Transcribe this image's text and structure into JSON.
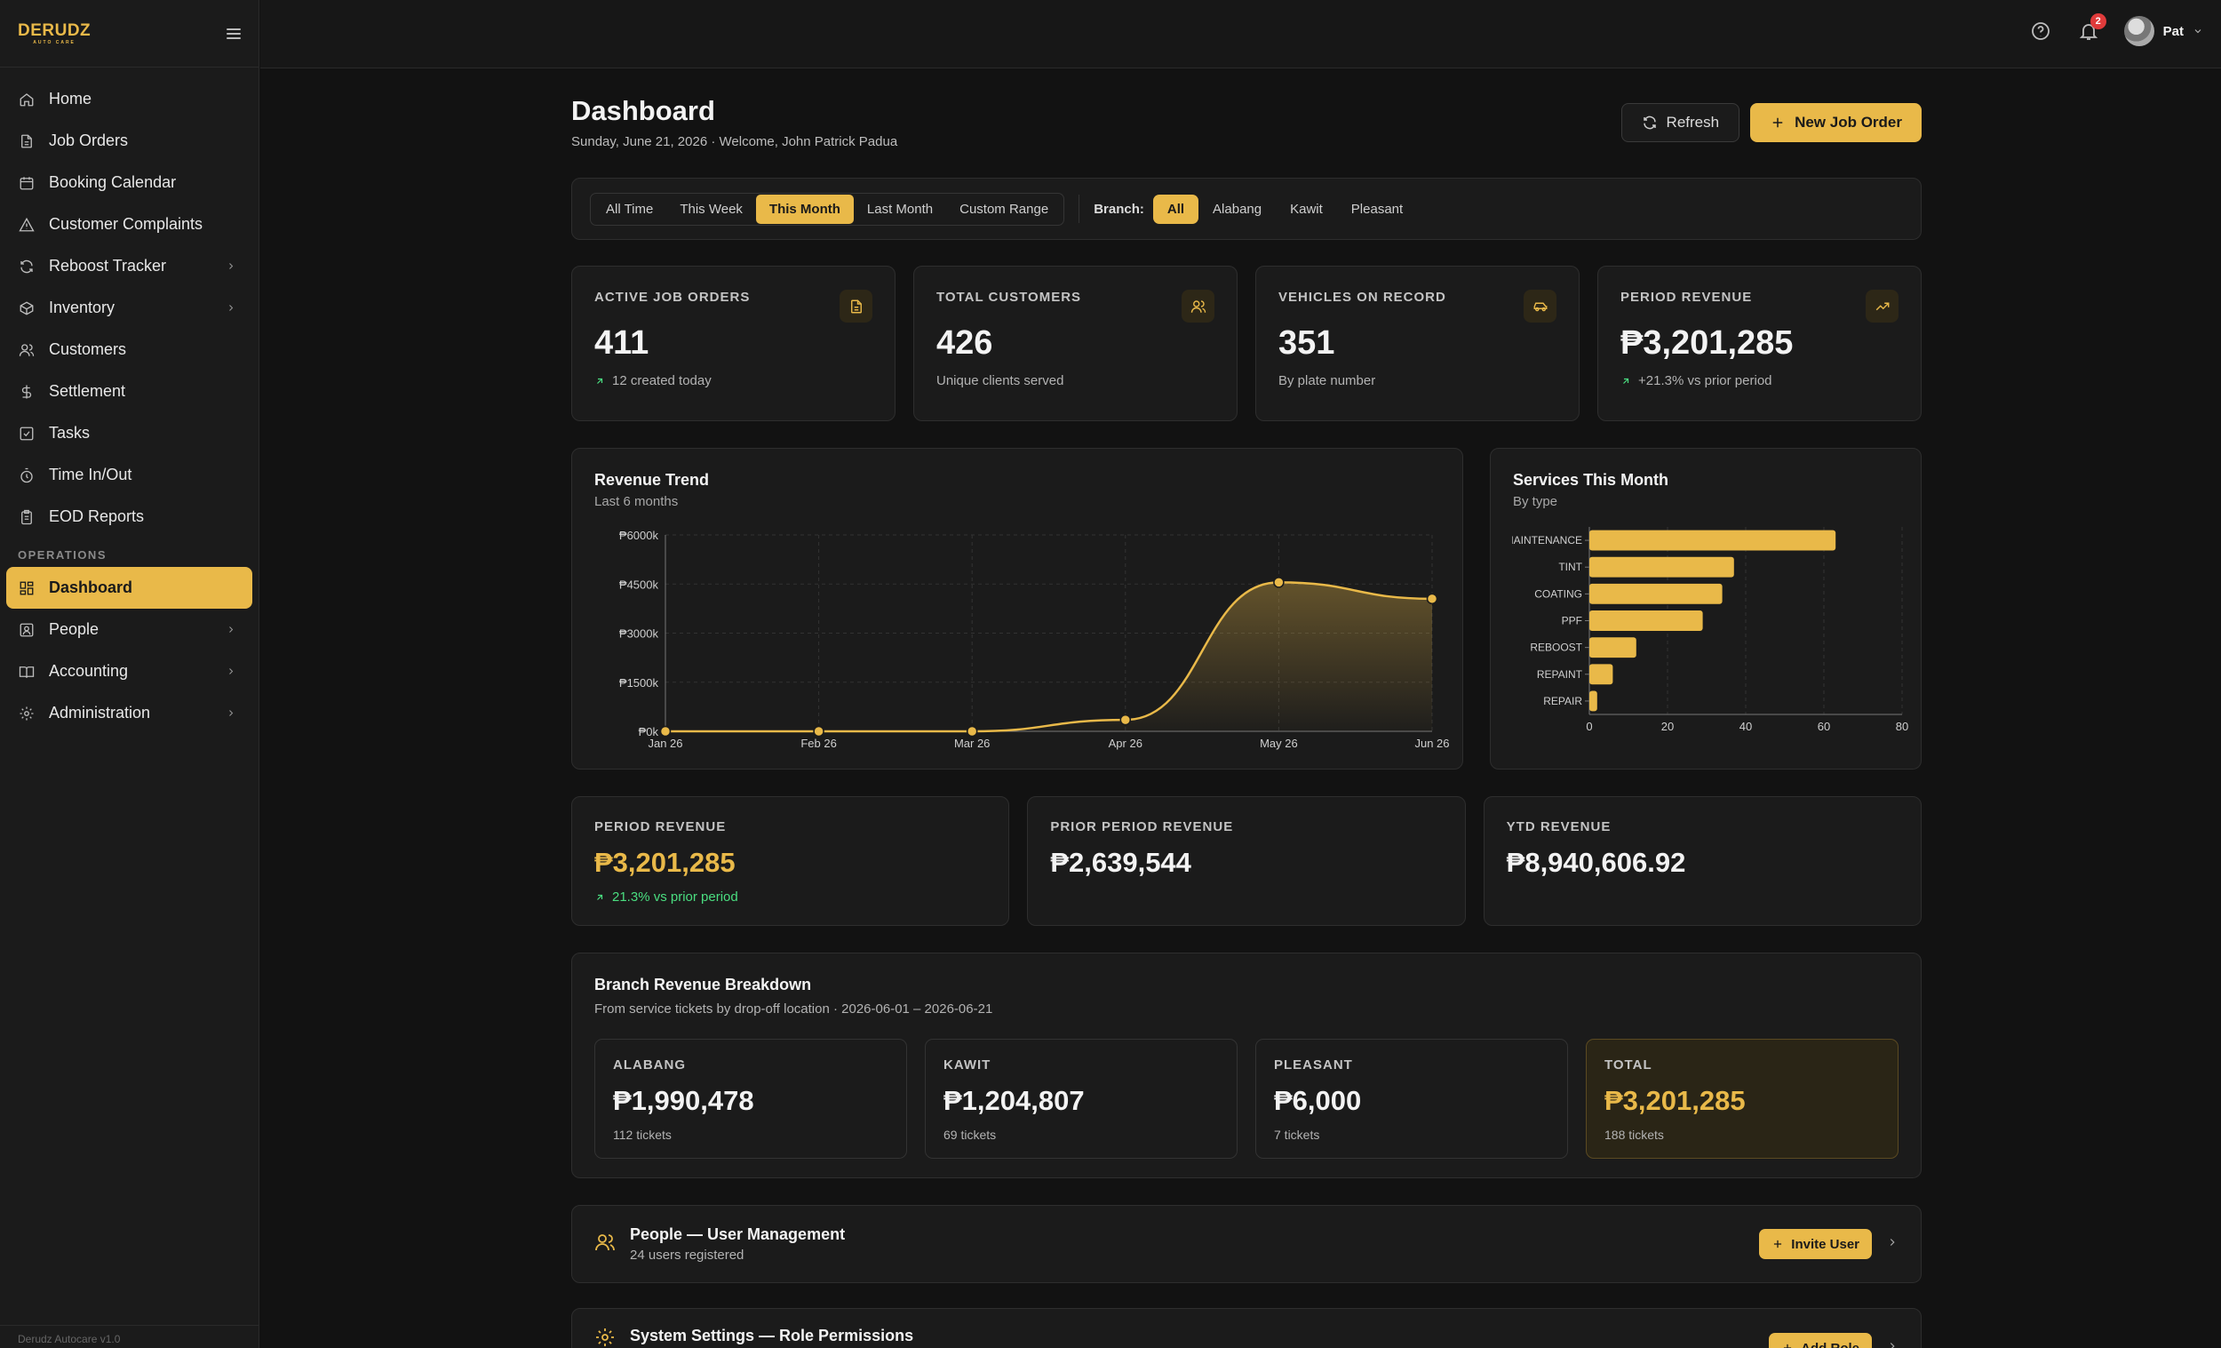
{
  "sidebar": {
    "logo": "DERUDZ",
    "logo_sub": "AUTO CARE",
    "items": [
      {
        "label": "Home",
        "icon": "home-icon"
      },
      {
        "label": "Job Orders",
        "icon": "file-icon"
      },
      {
        "label": "Booking Calendar",
        "icon": "calendar-icon"
      },
      {
        "label": "Customer Complaints",
        "icon": "alert-icon"
      },
      {
        "label": "Reboost Tracker",
        "icon": "refresh-icon"
      },
      {
        "label": "Inventory",
        "icon": "box-icon"
      },
      {
        "label": "Customers",
        "icon": "users-icon"
      },
      {
        "label": "Settlement",
        "icon": "dollar-icon"
      },
      {
        "label": "Tasks",
        "icon": "check-square-icon"
      },
      {
        "label": "Time In/Out",
        "icon": "timer-icon"
      },
      {
        "label": "EOD Reports",
        "icon": "clipboard-icon"
      }
    ],
    "section": "OPERATIONS",
    "ops_items": [
      {
        "label": "Dashboard",
        "icon": "grid-icon"
      },
      {
        "label": "People",
        "icon": "contact-icon"
      },
      {
        "label": "Accounting",
        "icon": "book-icon"
      },
      {
        "label": "Administration",
        "icon": "gear-icon"
      }
    ],
    "footer": "Derudz Autocare v1.0"
  },
  "topbar": {
    "notification_count": "2",
    "user_name": "Pat"
  },
  "header": {
    "title": "Dashboard",
    "subtitle": "Sunday, June 21, 2026 · Welcome, John Patrick Padua",
    "refresh_label": "Refresh",
    "new_job_label": "New Job Order"
  },
  "filters": {
    "periods": [
      "All Time",
      "This Week",
      "This Month",
      "Last Month",
      "Custom Range"
    ],
    "active_period": "This Month",
    "branch_label": "Branch:",
    "branches": [
      "All",
      "Alabang",
      "Kawit",
      "Pleasant"
    ],
    "active_branch": "All"
  },
  "stats": [
    {
      "label": "ACTIVE JOB ORDERS",
      "value": "411",
      "sub": "12 created today",
      "icon": "file-icon"
    },
    {
      "label": "TOTAL CUSTOMERS",
      "value": "426",
      "sub": "Unique clients served",
      "icon": "users-icon"
    },
    {
      "label": "VEHICLES ON RECORD",
      "value": "351",
      "sub": "By plate number",
      "icon": "car-icon"
    },
    {
      "label": "PERIOD REVENUE",
      "value": "₱3,201,285",
      "sub": "+21.3% vs prior period",
      "icon": "trending-up-icon"
    }
  ],
  "revenue_trend": {
    "title": "Revenue Trend",
    "subtitle": "Last 6 months"
  },
  "services": {
    "title": "Services This Month",
    "subtitle": "By type"
  },
  "chart_data": [
    {
      "type": "area",
      "title": "Revenue Trend",
      "subtitle": "Last 6 months",
      "x": [
        "Jan 26",
        "Feb 26",
        "Mar 26",
        "Apr 26",
        "May 26",
        "Jun 26"
      ],
      "y_ticks": [
        "₱0k",
        "₱1500k",
        "₱3000k",
        "₱4500k",
        "₱6000k"
      ],
      "values": [
        0,
        0,
        0,
        350,
        4550,
        4050
      ],
      "ylim": [
        0,
        6000
      ],
      "grid": true,
      "color": "#e9b949"
    },
    {
      "type": "bar",
      "orientation": "horizontal",
      "title": "Services This Month",
      "subtitle": "By type",
      "categories": [
        "MAINTENANCE",
        "TINT",
        "COATING",
        "PPF",
        "REBOOST",
        "REPAINT",
        "REPAIR"
      ],
      "values": [
        63,
        37,
        34,
        29,
        12,
        6,
        2
      ],
      "x_ticks": [
        "0",
        "20",
        "40",
        "60",
        "80"
      ],
      "xlim": [
        0,
        80
      ],
      "grid": true,
      "color": "#e9b949"
    }
  ],
  "revenue": [
    {
      "label": "PERIOD REVENUE",
      "value": "₱3,201,285",
      "sub": "21.3% vs prior period"
    },
    {
      "label": "PRIOR PERIOD REVENUE",
      "value": "₱2,639,544"
    },
    {
      "label": "YTD REVENUE",
      "value": "₱8,940,606.92"
    }
  ],
  "branch_breakdown": {
    "title": "Branch Revenue Breakdown",
    "subtitle": "From service tickets by drop-off location · 2026-06-01 – 2026-06-21",
    "items": [
      {
        "label": "ALABANG",
        "value": "₱1,990,478",
        "sub": "112 tickets"
      },
      {
        "label": "KAWIT",
        "value": "₱1,204,807",
        "sub": "69 tickets"
      },
      {
        "label": "PLEASANT",
        "value": "₱6,000",
        "sub": "7 tickets"
      },
      {
        "label": "TOTAL",
        "value": "₱3,201,285",
        "sub": "188 tickets"
      }
    ]
  },
  "people_card": {
    "title": "People — User Management",
    "subtitle": "24 users registered",
    "action": "Invite User"
  },
  "settings_card": {
    "title": "System Settings — Role Permissions",
    "action": "Add Role"
  }
}
